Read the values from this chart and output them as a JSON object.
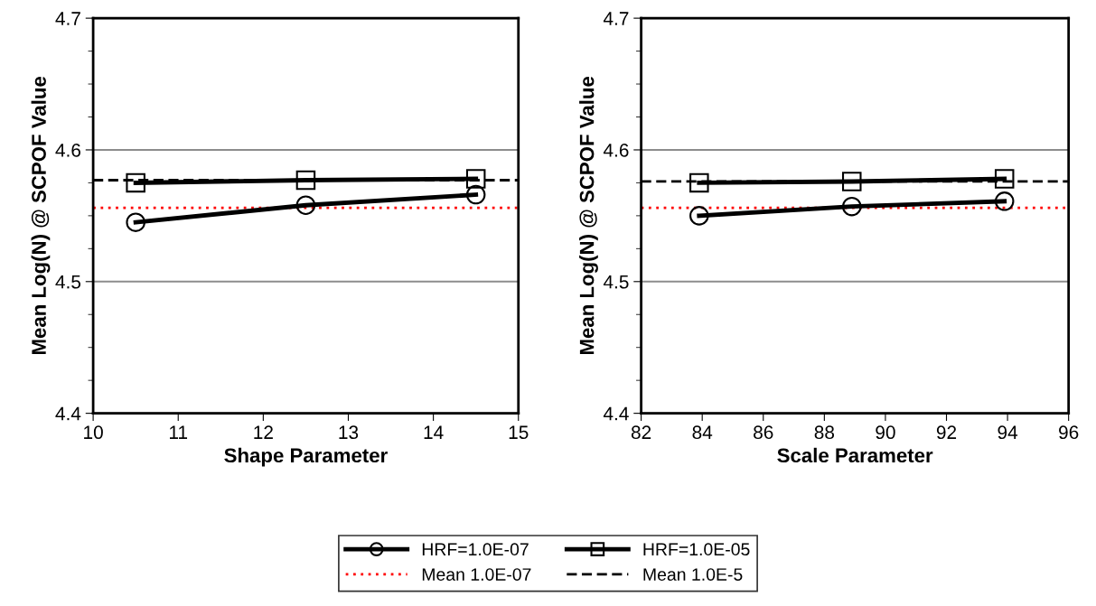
{
  "chart_data": [
    {
      "type": "line",
      "xlabel": "Shape Parameter",
      "ylabel": "Mean Log(N) @ SCPOF Value",
      "x": [
        10.5,
        12.5,
        14.5
      ],
      "series": [
        {
          "name": "HRF=1.0E-07",
          "color": "#000000",
          "marker": "circle",
          "values": [
            4.545,
            4.558,
            4.566
          ]
        },
        {
          "name": "HRF=1.0E-05",
          "color": "#000000",
          "marker": "square",
          "values": [
            4.575,
            4.577,
            4.578
          ]
        }
      ],
      "ref_lines": [
        {
          "axis": "y",
          "value": 4.556,
          "label": "Mean 1.0E-07",
          "color": "#ff0000",
          "line_style": "dotted"
        },
        {
          "axis": "y",
          "value": 4.577,
          "label": "Mean 1.0E-5",
          "color": "#000000",
          "line_style": "dashed"
        }
      ],
      "xlim": [
        10,
        15
      ],
      "xticks": [
        10,
        11,
        12,
        13,
        14,
        15
      ],
      "ylim": [
        4.4,
        4.7
      ],
      "yticks": [
        4.4,
        {
          "value": 4.425,
          "label": null
        },
        {
          "value": 4.45,
          "label": null
        },
        {
          "value": 4.475,
          "label": null
        },
        4.5,
        {
          "value": 4.525,
          "label": null
        },
        {
          "value": 4.55,
          "label": null
        },
        {
          "value": 4.575,
          "label": null
        },
        4.6,
        {
          "value": 4.625,
          "label": null
        },
        {
          "value": 4.65,
          "label": null
        },
        {
          "value": 4.675,
          "label": null
        },
        4.7
      ],
      "grid": "y",
      "legend": "bottom",
      "line_style": "solid"
    },
    {
      "type": "line",
      "xlabel": "Scale Parameter",
      "ylabel": "Mean Log(N) @ SCPOF Value",
      "x": [
        83.9,
        88.9,
        93.9
      ],
      "series": [
        {
          "color": "#000000",
          "marker": "circle",
          "values": [
            4.55,
            4.557,
            4.561
          ]
        },
        {
          "color": "#000000",
          "marker": "square",
          "values": [
            4.575,
            4.576,
            4.578
          ]
        }
      ],
      "ref_lines": [
        {
          "axis": "y",
          "value": 4.556,
          "color": "#ff0000",
          "line_style": "dotted"
        },
        {
          "axis": "y",
          "value": 4.576,
          "color": "#000000",
          "line_style": "dashed"
        }
      ],
      "xlim": [
        82,
        96
      ],
      "xticks": [
        82,
        84,
        86,
        88,
        90,
        92,
        94,
        96
      ],
      "ylim": [
        4.4,
        4.7
      ],
      "yticks": [
        4.4,
        {
          "value": 4.425,
          "label": null
        },
        {
          "value": 4.45,
          "label": null
        },
        {
          "value": 4.475,
          "label": null
        },
        4.5,
        {
          "value": 4.525,
          "label": null
        },
        {
          "value": 4.55,
          "label": null
        },
        {
          "value": 4.575,
          "label": null
        },
        4.6,
        {
          "value": 4.625,
          "label": null
        },
        {
          "value": 4.65,
          "label": null
        },
        {
          "value": 4.675,
          "label": null
        },
        4.7
      ],
      "grid": "y",
      "line_style": "solid"
    }
  ]
}
